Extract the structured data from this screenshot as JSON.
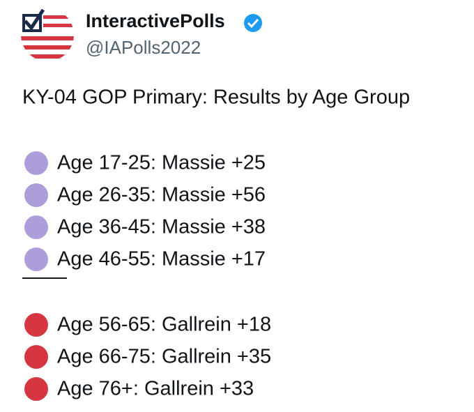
{
  "header": {
    "name": "InteractivePolls",
    "handle": "@IAPolls2022"
  },
  "post": {
    "title": "KY-04 GOP Primary: Results by Age Group",
    "groups": [
      {
        "color": "#ae9ddb",
        "items": [
          "Age 17-25: Massie +25",
          "Age 26-35: Massie +56",
          "Age 36-45: Massie +38",
          "Age 46-55: Massie +17"
        ]
      },
      {
        "color": "#d5363f",
        "items": [
          "Age 56-65: Gallrein +18",
          "Age 66-75: Gallrein +35",
          "Age 76+: Gallrein +33"
        ]
      }
    ]
  }
}
